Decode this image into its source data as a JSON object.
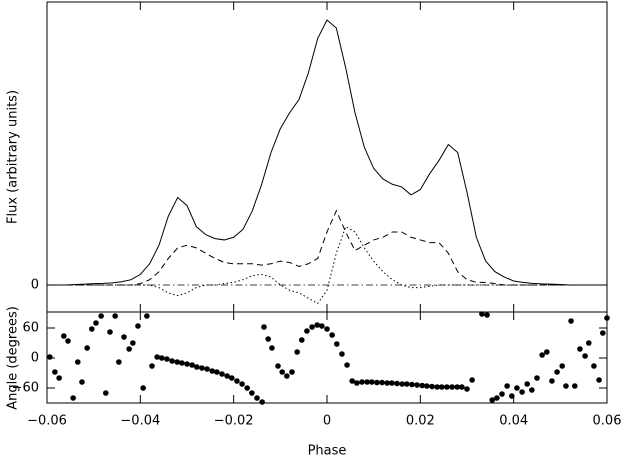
{
  "chart_data": [
    {
      "type": "line",
      "ylabel": "Flux (arbitrary units)",
      "x": [
        -0.06,
        -0.058,
        -0.056,
        -0.054,
        -0.052,
        -0.05,
        -0.048,
        -0.046,
        -0.044,
        -0.042,
        -0.04,
        -0.038,
        -0.036,
        -0.034,
        -0.032,
        -0.03,
        -0.028,
        -0.026,
        -0.024,
        -0.022,
        -0.02,
        -0.018,
        -0.016,
        -0.014,
        -0.012,
        -0.01,
        -0.008,
        -0.006,
        -0.004,
        -0.002,
        0,
        0.002,
        0.004,
        0.006,
        0.008,
        0.01,
        0.012,
        0.014,
        0.016,
        0.018,
        0.02,
        0.022,
        0.024,
        0.026,
        0.028,
        0.03,
        0.032,
        0.034,
        0.036,
        0.038,
        0.04,
        0.042,
        0.044,
        0.046,
        0.048,
        0.05,
        0.052,
        0.054,
        0.056,
        0.058,
        0.06
      ],
      "series": [
        {
          "color": "#000000",
          "dash": "none",
          "values": [
            0,
            0,
            0,
            0.002,
            0.003,
            0.005,
            0.006,
            0.008,
            0.012,
            0.02,
            0.04,
            0.08,
            0.15,
            0.26,
            0.33,
            0.3,
            0.22,
            0.19,
            0.175,
            0.17,
            0.18,
            0.21,
            0.28,
            0.38,
            0.5,
            0.59,
            0.65,
            0.7,
            0.8,
            0.93,
            1.0,
            0.97,
            0.82,
            0.65,
            0.52,
            0.44,
            0.4,
            0.38,
            0.37,
            0.34,
            0.36,
            0.42,
            0.47,
            0.53,
            0.5,
            0.35,
            0.18,
            0.09,
            0.05,
            0.03,
            0.015,
            0.01,
            0.006,
            0.004,
            0.003,
            0.002,
            0,
            0,
            0,
            0,
            0
          ]
        },
        {
          "color": "#000000",
          "dash": "6 4",
          "values": [
            0,
            0,
            0,
            0,
            0,
            0,
            0,
            0,
            0,
            0,
            0.005,
            0.02,
            0.05,
            0.1,
            0.14,
            0.15,
            0.14,
            0.12,
            0.1,
            0.085,
            0.08,
            0.08,
            0.08,
            0.075,
            0.08,
            0.09,
            0.085,
            0.07,
            0.08,
            0.1,
            0.2,
            0.28,
            0.2,
            0.13,
            0.15,
            0.17,
            0.18,
            0.2,
            0.2,
            0.18,
            0.17,
            0.16,
            0.16,
            0.12,
            0.05,
            0.02,
            0.01,
            0.01,
            0.005,
            0,
            0,
            0,
            0,
            0,
            0,
            0,
            0,
            0,
            0,
            0,
            0
          ]
        },
        {
          "color": "#000000",
          "dash": "1.5 2.5",
          "values": [
            0,
            0,
            0,
            0,
            0,
            0,
            0,
            0,
            0,
            0,
            0,
            0,
            -0.01,
            -0.03,
            -0.04,
            -0.03,
            -0.01,
            0,
            0,
            0.005,
            0.01,
            0.02,
            0.035,
            0.04,
            0.03,
            0,
            -0.02,
            -0.03,
            -0.05,
            -0.07,
            -0.02,
            0.12,
            0.22,
            0.2,
            0.14,
            0.09,
            0.05,
            0.02,
            0,
            -0.01,
            -0.01,
            -0.005,
            0,
            0,
            0,
            0,
            0,
            0,
            0,
            0,
            0,
            0,
            0,
            0,
            0,
            0,
            0,
            0,
            0,
            0,
            0
          ]
        }
      ],
      "xlim": [
        -0.06,
        0.06
      ],
      "ylim": [
        -0.102,
        1.068
      ],
      "yticks": [
        0
      ],
      "zero_line": true
    },
    {
      "type": "scatter",
      "xlabel": "Phase",
      "ylabel": "Angle (degrees)",
      "x": [
        -0.0594,
        -0.0583,
        -0.0574,
        -0.0564,
        -0.0555,
        -0.0544,
        -0.0534,
        -0.0525,
        -0.0514,
        -0.0504,
        -0.0495,
        -0.0484,
        -0.0474,
        -0.0465,
        -0.0454,
        -0.0446,
        -0.0435,
        -0.0424,
        -0.0416,
        -0.0405,
        -0.0394,
        -0.0386,
        -0.0375,
        -0.0364,
        -0.0354,
        -0.0343,
        -0.0332,
        -0.0321,
        -0.0311,
        -0.03,
        -0.0289,
        -0.0279,
        -0.0268,
        -0.0257,
        -0.0246,
        -0.0236,
        -0.0225,
        -0.0214,
        -0.0204,
        -0.0193,
        -0.0182,
        -0.0171,
        -0.0161,
        -0.015,
        -0.0139,
        -0.0135,
        -0.0126,
        -0.0118,
        -0.0105,
        -0.0096,
        -0.0086,
        -0.0075,
        -0.0064,
        -0.0054,
        -0.0043,
        -0.0032,
        -0.0021,
        -0.0011,
        0,
        0.0011,
        0.0021,
        0.0032,
        0.0043,
        0.0054,
        0.0064,
        0.0075,
        0.0086,
        0.0096,
        0.0107,
        0.0118,
        0.0129,
        0.0139,
        0.015,
        0.0161,
        0.0171,
        0.0182,
        0.0193,
        0.0204,
        0.0214,
        0.0225,
        0.0236,
        0.0246,
        0.0257,
        0.0268,
        0.0279,
        0.0289,
        0.03,
        0.0311,
        0.0332,
        0.0343,
        0.0354,
        0.0364,
        0.0375,
        0.0386,
        0.0396,
        0.0407,
        0.0418,
        0.0429,
        0.0439,
        0.045,
        0.0461,
        0.0471,
        0.0482,
        0.0493,
        0.0504,
        0.0512,
        0.0523,
        0.0531,
        0.0542,
        0.0553,
        0.0561,
        0.0572,
        0.0583,
        0.0591,
        0.06
      ],
      "values": [
        2,
        -28,
        -40,
        44,
        34,
        -80,
        -8,
        -48,
        20,
        58,
        70,
        84,
        -70,
        52,
        84,
        -8,
        42,
        18,
        30,
        64,
        -60,
        84,
        -16,
        2,
        0,
        -2,
        -6,
        -8,
        -10,
        -12,
        -14,
        -18,
        -20,
        -22,
        -26,
        -28,
        -32,
        -36,
        -40,
        -46,
        -52,
        -60,
        -70,
        -80,
        -88,
        62,
        38,
        20,
        -16,
        -28,
        -36,
        -28,
        12,
        36,
        54,
        62,
        66,
        64,
        58,
        46,
        28,
        8,
        -14,
        -46,
        -50,
        -48,
        -48,
        -48,
        -49,
        -49,
        -50,
        -50,
        -51,
        -52,
        -52,
        -53,
        -54,
        -55,
        -56,
        -57,
        -58,
        -58,
        -58,
        -58,
        -58,
        -58,
        -62,
        -44,
        88,
        86,
        -84,
        -80,
        -72,
        -56,
        -76,
        -60,
        -68,
        -52,
        -64,
        -40,
        6,
        12,
        -46,
        -28,
        -16,
        -56,
        74,
        -56,
        18,
        4,
        30,
        -16,
        -44,
        50,
        80
      ],
      "color": "#000000",
      "xlim": [
        -0.06,
        0.06
      ],
      "xticks": [
        {
          "value": -0.06,
          "label": "−0.06"
        },
        {
          "value": -0.04,
          "label": "−0.04"
        },
        {
          "value": -0.02,
          "label": "−0.02"
        },
        0,
        0.02,
        0.04,
        0.06
      ],
      "ylim": [
        -90,
        92
      ],
      "yticks": [
        {
          "value": -60,
          "label": "−60"
        },
        0,
        60
      ]
    }
  ]
}
